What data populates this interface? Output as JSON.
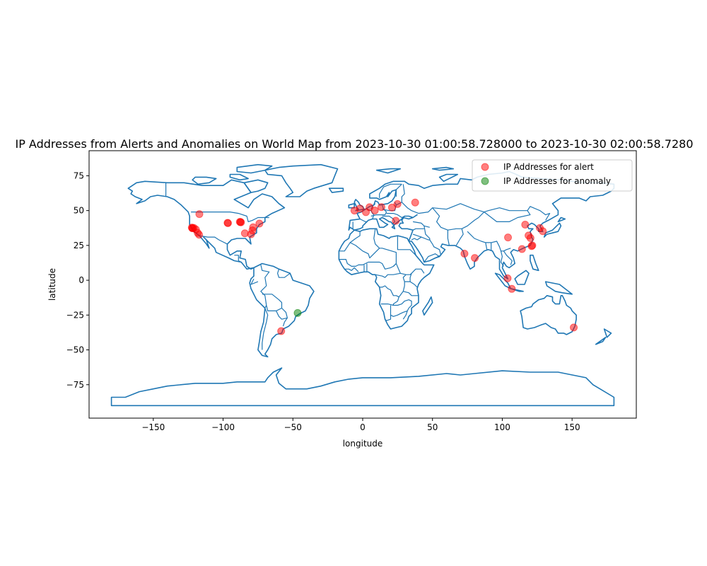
{
  "chart_data": {
    "type": "scatter",
    "title": "IP Addresses from Alerts and Anomalies on World Map from 2023-10-30 01:00:58.728000 to 2023-10-30 02:00:58.7280",
    "xlabel": "longitude",
    "ylabel": "latitude",
    "xlim": [
      -196,
      196
    ],
    "ylim": [
      -99,
      93
    ],
    "xticks": [
      -150,
      -100,
      -50,
      0,
      50,
      100,
      150
    ],
    "yticks": [
      -75,
      -50,
      -25,
      0,
      25,
      50,
      75
    ],
    "grid": false,
    "legend_position": "top-right",
    "basemap": "world country outlines",
    "basemap_color": "#1f77b4",
    "series": [
      {
        "name": "IP Addresses for alert",
        "color": "#ff0000",
        "opacity": 0.5,
        "points": [
          {
            "x": -122.4,
            "y": 37.8
          },
          {
            "x": -121.9,
            "y": 37.4
          },
          {
            "x": -122.0,
            "y": 37.3
          },
          {
            "x": -121.0,
            "y": 37.6
          },
          {
            "x": -119.5,
            "y": 36.5
          },
          {
            "x": -118.2,
            "y": 34.0
          },
          {
            "x": -117.2,
            "y": 32.7
          },
          {
            "x": -117.0,
            "y": 47.5
          },
          {
            "x": -96.8,
            "y": 41.2
          },
          {
            "x": -96.5,
            "y": 41.0
          },
          {
            "x": -88.0,
            "y": 41.9
          },
          {
            "x": -87.6,
            "y": 41.8
          },
          {
            "x": -87.2,
            "y": 41.6
          },
          {
            "x": -84.4,
            "y": 33.7
          },
          {
            "x": -79.0,
            "y": 35.8
          },
          {
            "x": -78.5,
            "y": 38.0
          },
          {
            "x": -80.0,
            "y": 33.0
          },
          {
            "x": -74.0,
            "y": 40.7
          },
          {
            "x": -58.4,
            "y": -36.5
          },
          {
            "x": -5.9,
            "y": 50.0
          },
          {
            "x": -2.0,
            "y": 51.5
          },
          {
            "x": 2.3,
            "y": 48.9
          },
          {
            "x": 4.9,
            "y": 52.4
          },
          {
            "x": 8.7,
            "y": 50.1
          },
          {
            "x": 13.4,
            "y": 52.5
          },
          {
            "x": 21.0,
            "y": 52.2
          },
          {
            "x": 24.9,
            "y": 54.7
          },
          {
            "x": 23.7,
            "y": 42.7
          },
          {
            "x": 37.6,
            "y": 55.8
          },
          {
            "x": 72.9,
            "y": 19.1
          },
          {
            "x": 80.3,
            "y": 16.0
          },
          {
            "x": 103.8,
            "y": 1.4
          },
          {
            "x": 106.8,
            "y": -6.2
          },
          {
            "x": 104.1,
            "y": 30.7
          },
          {
            "x": 116.4,
            "y": 39.9
          },
          {
            "x": 114.1,
            "y": 22.4
          },
          {
            "x": 118.8,
            "y": 32.1
          },
          {
            "x": 120.2,
            "y": 30.3
          },
          {
            "x": 121.5,
            "y": 25.0
          },
          {
            "x": 121.0,
            "y": 24.5
          },
          {
            "x": 126.9,
            "y": 37.5
          },
          {
            "x": 129.0,
            "y": 35.2
          },
          {
            "x": 151.2,
            "y": -33.9
          }
        ]
      },
      {
        "name": "IP Addresses for anomaly",
        "color": "#008000",
        "opacity": 0.5,
        "points": [
          {
            "x": -46.6,
            "y": -23.5
          }
        ]
      }
    ]
  }
}
